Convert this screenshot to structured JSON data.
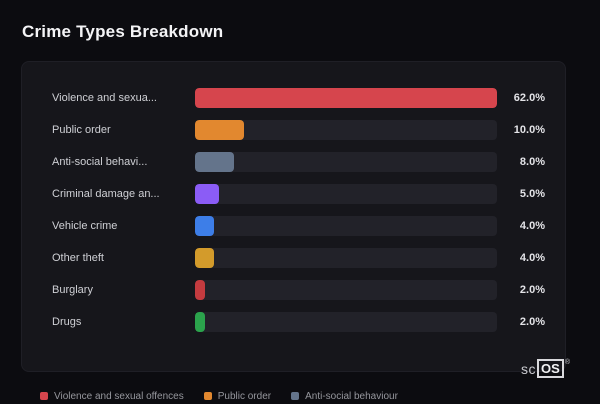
{
  "header": {
    "title": "Crime Types Breakdown"
  },
  "chart_data": {
    "type": "bar",
    "orientation": "horizontal",
    "title": "Crime Types Breakdown",
    "categories": [
      "Violence and sexua...",
      "Public order",
      "Anti-social behavi...",
      "Criminal damage an...",
      "Vehicle crime",
      "Other theft",
      "Burglary",
      "Drugs"
    ],
    "values": [
      62.0,
      10.0,
      8.0,
      5.0,
      4.0,
      4.0,
      2.0,
      2.0
    ],
    "value_labels": [
      "62.0%",
      "10.0%",
      "8.0%",
      "5.0%",
      "4.0%",
      "4.0%",
      "2.0%",
      "2.0%"
    ],
    "colors": [
      "#d6454d",
      "#e2882f",
      "#64748b",
      "#8b5cf6",
      "#3d7ee8",
      "#d39b2b",
      "#c43b3f",
      "#2ba34c"
    ],
    "scale_max": 62,
    "xlim": [
      0,
      62
    ],
    "grid": false,
    "legend_position": "bottom",
    "legend": [
      {
        "label": "Violence and sexual offences",
        "color": "#d6454d"
      },
      {
        "label": "Public order",
        "color": "#e2882f"
      },
      {
        "label": "Anti-social behaviour",
        "color": "#64748b"
      }
    ]
  },
  "logo": {
    "prefix": "sc",
    "boxed": "OS",
    "mark": "®"
  }
}
